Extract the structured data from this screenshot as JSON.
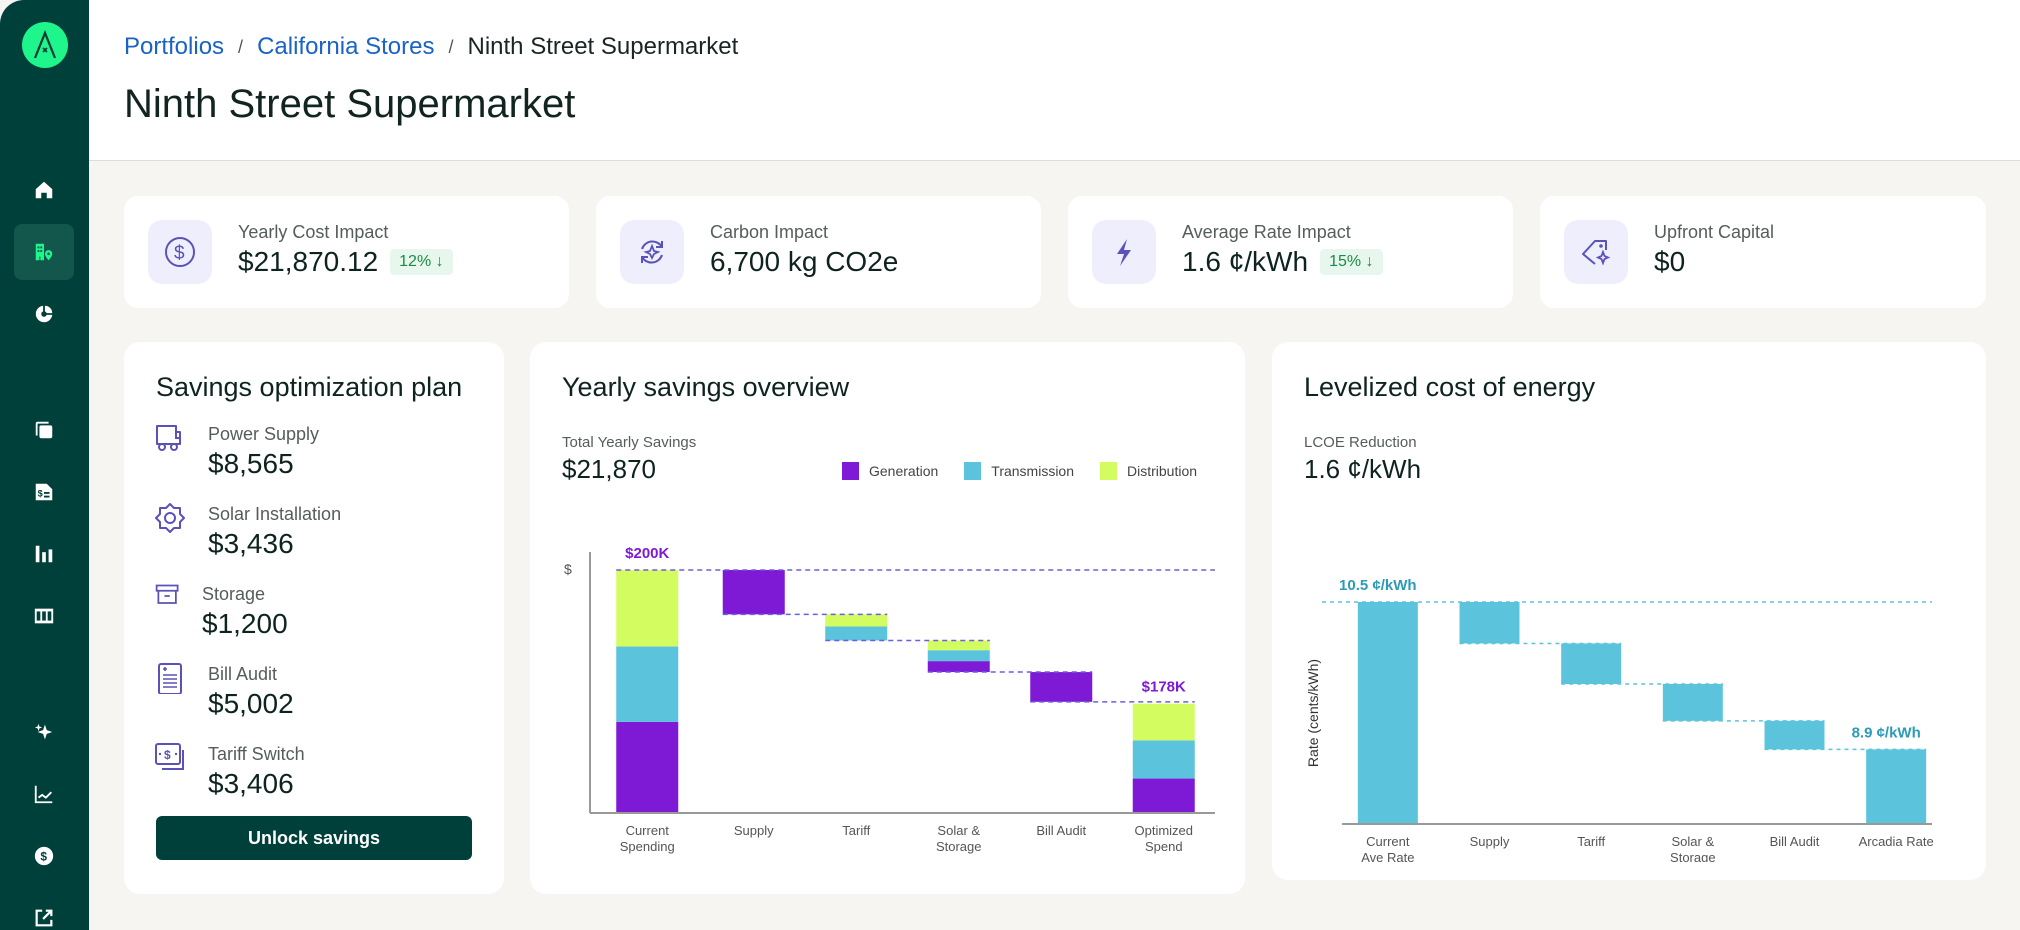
{
  "sidebar": {
    "logo_letter": "A",
    "items": [
      {
        "name": "home",
        "icon": "home-icon",
        "active": false
      },
      {
        "name": "sites",
        "icon": "building-location-icon",
        "active": true
      },
      {
        "name": "analytics",
        "icon": "pie-chart-icon",
        "active": false
      },
      {
        "name": "copies",
        "icon": "copy-icon",
        "active": false
      },
      {
        "name": "bills",
        "icon": "invoice-dollar-icon",
        "active": false
      },
      {
        "name": "reports",
        "icon": "bar-chart-icon",
        "active": false
      },
      {
        "name": "table",
        "icon": "columns-icon",
        "active": false
      },
      {
        "name": "insights",
        "icon": "sparkle-icon",
        "active": false
      },
      {
        "name": "trends",
        "icon": "line-chart-icon",
        "active": false
      },
      {
        "name": "payments",
        "icon": "dollar-circle-icon",
        "active": false
      },
      {
        "name": "external",
        "icon": "external-link-icon",
        "active": false
      }
    ]
  },
  "header": {
    "breadcrumb": [
      "Portfolios",
      "California Stores",
      "Ninth Street Supermarket"
    ],
    "separator": "/",
    "title": "Ninth Street Supermarket"
  },
  "kpis": [
    {
      "label": "Yearly Cost Impact",
      "value": "$21,870.12",
      "badge": "12% ↓",
      "icon": "dollar-circle-icon"
    },
    {
      "label": "Carbon Impact",
      "value": "6,700 kg CO2e",
      "badge": null,
      "icon": "refresh-sparkle-icon"
    },
    {
      "label": "Average Rate Impact",
      "value": "1.6 ¢/kWh",
      "badge": "15% ↓",
      "icon": "lightning-icon"
    },
    {
      "label": "Upfront Capital",
      "value": "$0",
      "badge": null,
      "icon": "tag-sparkle-icon"
    }
  ],
  "plan": {
    "title": "Savings optimization plan",
    "items": [
      {
        "label": "Power Supply",
        "value": "$8,565",
        "icon": "truck-icon"
      },
      {
        "label": "Solar Installation",
        "value": "$3,436",
        "icon": "sun-gear-icon"
      },
      {
        "label": "Storage",
        "value": "$1,200",
        "icon": "archive-box-icon"
      },
      {
        "label": "Bill Audit",
        "value": "$5,002",
        "icon": "document-lines-icon"
      },
      {
        "label": "Tariff Switch",
        "value": "$3,406",
        "icon": "money-stack-icon"
      }
    ],
    "button": "Unlock savings"
  },
  "savings": {
    "title": "Yearly savings overview",
    "total_label": "Total Yearly Savings",
    "total_value": "$21,870"
  },
  "lcoe": {
    "title": "Levelized cost of energy",
    "reduction_label": "LCOE Reduction",
    "reduction_value": "1.6 ¢/kWh"
  },
  "chart_data": [
    {
      "type": "bar",
      "subtype": "stacked-waterfall",
      "title": "Yearly savings overview",
      "ylabel": "$",
      "xlabel": "",
      "units": "$K",
      "ylim": [
        160,
        200
      ],
      "legend": {
        "placement": "top-right",
        "entries": [
          "Generation",
          "Transmission",
          "Distribution"
        ]
      },
      "colors": {
        "Generation": "#7e19d6",
        "Transmission": "#5bc4dc",
        "Distribution": "#d3fc60",
        "connector": "#6a5fe0",
        "label": "#7e19d6"
      },
      "categories": [
        "Current\nSpending",
        "Supply",
        "Tariff",
        "Solar &\nStorage",
        "Bill Audit",
        "Optimized\nSpend"
      ],
      "bars": [
        {
          "kind": "total",
          "value": 200,
          "label": "$200K",
          "share": {
            "Generation": 0.375,
            "Transmission": 0.31,
            "Distribution": 0.315
          }
        },
        {
          "kind": "step",
          "segments": {
            "Generation": 7.3
          }
        },
        {
          "kind": "step",
          "segments": {
            "Transmission": 2.3,
            "Distribution": 2.0
          }
        },
        {
          "kind": "step",
          "segments": {
            "Generation": 1.8,
            "Transmission": 1.8,
            "Distribution": 1.6
          }
        },
        {
          "kind": "step",
          "segments": {
            "Generation": 4.9
          }
        },
        {
          "kind": "total",
          "value": 178,
          "label": "$178K",
          "share": {
            "Generation": 0.315,
            "Transmission": 0.35,
            "Distribution": 0.335
          }
        }
      ],
      "grid": false
    },
    {
      "type": "bar",
      "subtype": "waterfall",
      "title": "Levelized cost of energy",
      "ylabel": "Rate (cents/kWh)",
      "xlabel": "",
      "ylim": [
        8.09,
        10.5
      ],
      "colors": {
        "bar": "#5bc4dc",
        "connector": "#5bc4dc",
        "label": "#2b9bb8"
      },
      "categories": [
        "Current\nAve Rate",
        "Supply",
        "Tariff",
        "Solar &\nStorage",
        "Bill Audit",
        "Arcadia Rate"
      ],
      "bars": [
        {
          "kind": "total",
          "value": 10.5,
          "label": "10.5 ¢/kWh"
        },
        {
          "kind": "step",
          "value": 0.45
        },
        {
          "kind": "step",
          "value": 0.44
        },
        {
          "kind": "step",
          "value": 0.4
        },
        {
          "kind": "step",
          "value": 0.31
        },
        {
          "kind": "total",
          "value": 8.9,
          "label": "8.9 ¢/kWh"
        }
      ],
      "grid": false
    }
  ]
}
